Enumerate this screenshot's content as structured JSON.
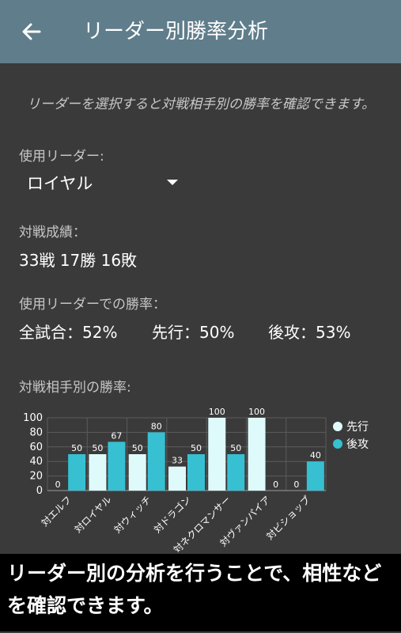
{
  "appbar": {
    "title": "リーダー別勝率分析",
    "back_icon": "arrow-back-icon"
  },
  "instruction": "リーダーを選択すると対戦相手別の勝率を確認できます。",
  "leader": {
    "label": "使用リーダー:",
    "selected": "ロイヤル"
  },
  "record": {
    "label": "対戦成績：",
    "value": "33戦 17勝 16敗"
  },
  "winrate": {
    "label": "使用リーダーでの勝率：",
    "overall": "全試合：52%",
    "first": "先行：50%",
    "second": "後攻：53%"
  },
  "chart_section_label": "対戦相手別の勝率:",
  "chart_data": {
    "type": "bar",
    "categories": [
      "対エルフ",
      "対ロイヤル",
      "対ウィッチ",
      "対ドラゴン",
      "対ネクロマンサー",
      "対ヴァンパイア",
      "対ビショップ"
    ],
    "series": [
      {
        "name": "先行",
        "values": [
          0,
          50,
          50,
          33,
          100,
          100,
          0
        ],
        "color": "#dffafb"
      },
      {
        "name": "後攻",
        "values": [
          50,
          67,
          80,
          50,
          50,
          0,
          40
        ],
        "color": "#36c0d2"
      }
    ],
    "data_labels": {
      "先行": [
        "0",
        "50",
        "50",
        "33",
        "100",
        "100",
        "0"
      ],
      "後攻": [
        "50",
        "67",
        "80",
        "50",
        "50",
        "0",
        "40"
      ]
    },
    "ylim": [
      0,
      100
    ],
    "yticks": [
      0,
      20,
      40,
      60,
      80,
      100
    ],
    "grid": true,
    "legend": "right"
  },
  "caption": "リーダー別の分析を行うことで、相性などを確認できます。"
}
